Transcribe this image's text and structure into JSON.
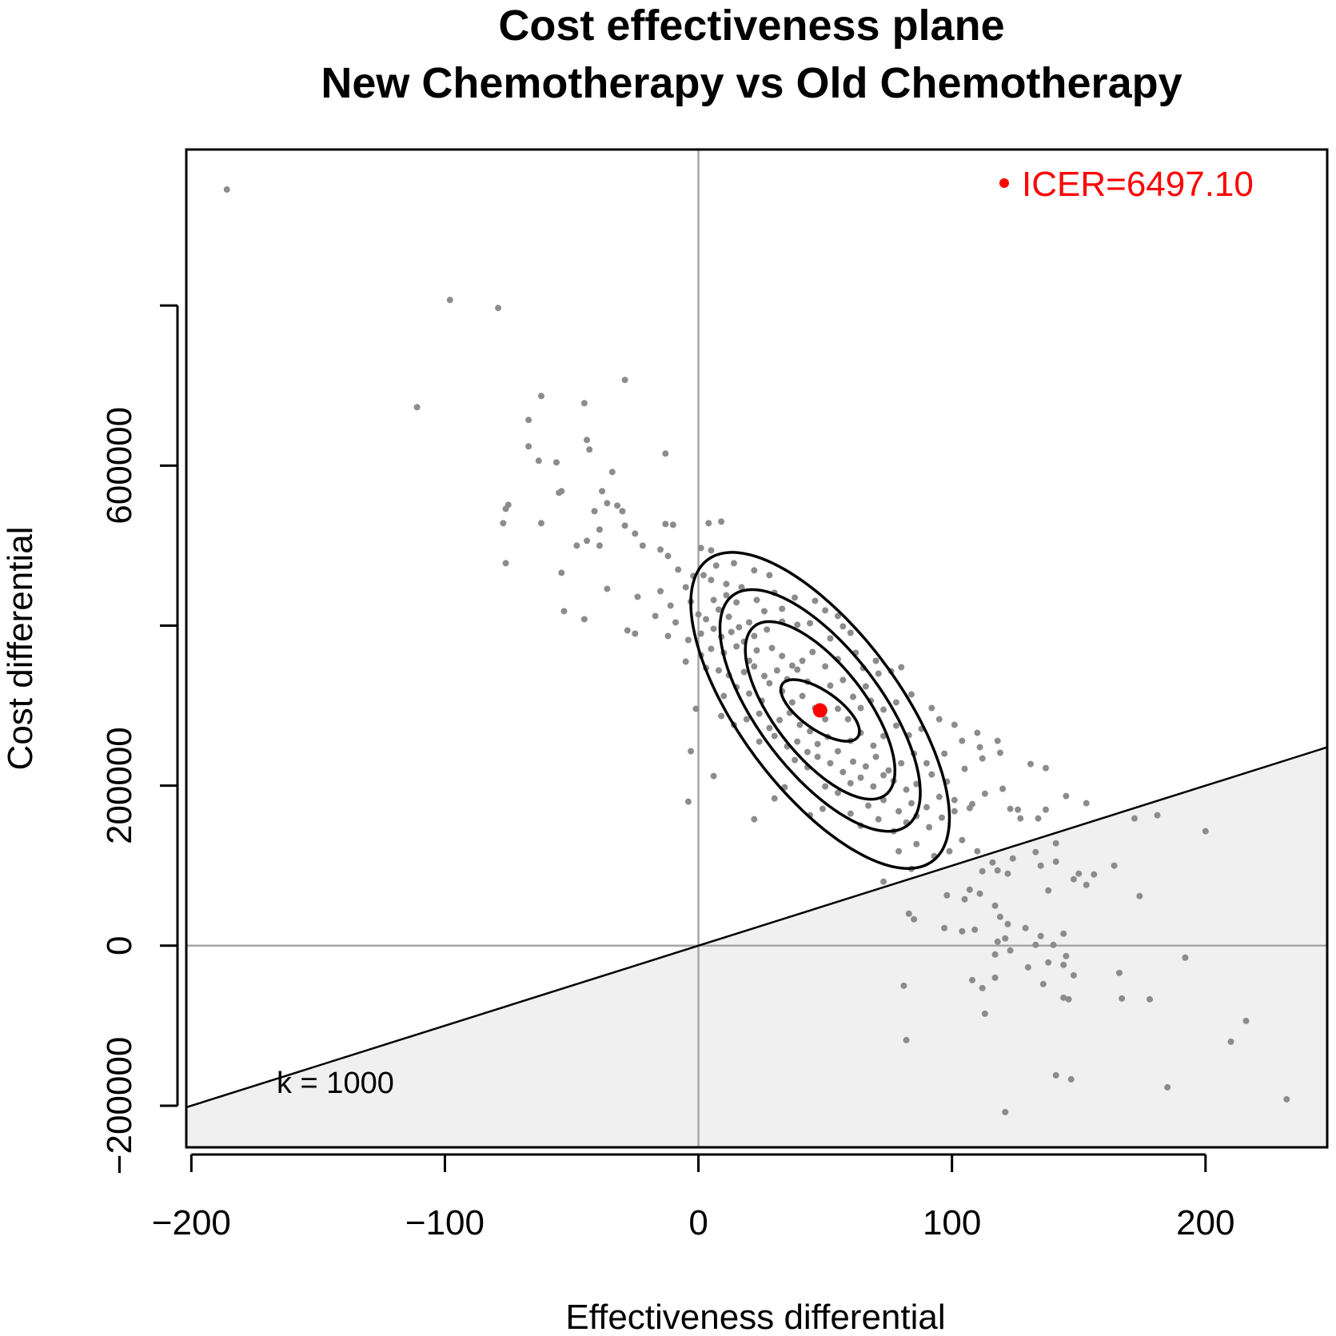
{
  "colors": {
    "points": "#8c8c8c",
    "icer": "#ff0000",
    "region_fill": "#f0f0f0",
    "axes_zero": "#a6a6a6",
    "contour": "#000000"
  },
  "chart_data": {
    "type": "scatter",
    "title": "Cost effectiveness plane",
    "subtitle": "New Chemotherapy vs Old Chemotherapy",
    "xlabel": "Effectiveness differential",
    "ylabel": "Cost differential",
    "xlim": [
      -202,
      248
    ],
    "ylim": [
      -252000,
      995000
    ],
    "x_ticks": [
      -200,
      -100,
      0,
      100,
      200
    ],
    "x_tick_labels": [
      "−200",
      "−100",
      "0",
      "100",
      "200"
    ],
    "y_ticks": [
      -200000,
      0,
      200000,
      400000,
      600000,
      800000
    ],
    "y_tick_labels": [
      "−200000",
      "0",
      "200000",
      "",
      "600000",
      ""
    ],
    "wtp_k": 1000,
    "k_label": "k = 1000",
    "icer": {
      "x": 48,
      "y": 294000,
      "value": "6497.10",
      "label": "ICER=6497.10"
    },
    "legend_position": "top-right",
    "contours": [
      {
        "level": 1,
        "cx": 48,
        "cy": 294000,
        "sx": 15.5,
        "sy": 38500,
        "rho": -0.68
      },
      {
        "level": 2,
        "cx": 48,
        "cy": 294000,
        "sx": 29.5,
        "sy": 111000,
        "rho": -0.68
      },
      {
        "level": 3,
        "cx": 48,
        "cy": 294000,
        "sx": 39.5,
        "sy": 151000,
        "rho": -0.68
      },
      {
        "level": 4,
        "cx": 48,
        "cy": 294000,
        "sx": 51.0,
        "sy": 197500,
        "rho": -0.68
      }
    ],
    "points": [
      [
        -186,
        945000
      ],
      [
        -98,
        807000
      ],
      [
        -79,
        797000
      ],
      [
        -111,
        673000
      ],
      [
        -29,
        707000
      ],
      [
        -62,
        687000
      ],
      [
        -45,
        678000
      ],
      [
        -67,
        657000
      ],
      [
        -44,
        632000
      ],
      [
        -43,
        620000
      ],
      [
        -67,
        624000
      ],
      [
        -63,
        606000
      ],
      [
        -56,
        604000
      ],
      [
        -13,
        615000
      ],
      [
        -34,
        592000
      ],
      [
        -54,
        568000
      ],
      [
        -55,
        566000
      ],
      [
        -75,
        551000
      ],
      [
        -76,
        546000
      ],
      [
        -77,
        528000
      ],
      [
        -62,
        528000
      ],
      [
        -38,
        568000
      ],
      [
        -32,
        550000
      ],
      [
        -30,
        543000
      ],
      [
        -36,
        553000
      ],
      [
        -41,
        543000
      ],
      [
        -39,
        520000
      ],
      [
        -29,
        525000
      ],
      [
        -44,
        506000
      ],
      [
        -48,
        500000
      ],
      [
        -13,
        527000
      ],
      [
        -10,
        526000
      ],
      [
        4,
        528000
      ],
      [
        9,
        530000
      ],
      [
        -25,
        515000
      ],
      [
        -39,
        500000
      ],
      [
        -22,
        500000
      ],
      [
        -15,
        495000
      ],
      [
        -12,
        487000
      ],
      [
        1,
        497000
      ],
      [
        5,
        494000
      ],
      [
        -76,
        478000
      ],
      [
        -54,
        466000
      ],
      [
        -8,
        470000
      ],
      [
        2,
        463000
      ],
      [
        7,
        475000
      ],
      [
        14,
        478000
      ],
      [
        22,
        469000
      ],
      [
        -36,
        446000
      ],
      [
        -15,
        443000
      ],
      [
        -5,
        448000
      ],
      [
        -2,
        462000
      ],
      [
        5,
        457000
      ],
      [
        11,
        452000
      ],
      [
        17,
        448000
      ],
      [
        28,
        463000
      ],
      [
        -53,
        418000
      ],
      [
        -45,
        408000
      ],
      [
        -24,
        436000
      ],
      [
        -11,
        425000
      ],
      [
        -3,
        430000
      ],
      [
        6,
        432000
      ],
      [
        11,
        438000
      ],
      [
        15,
        429000
      ],
      [
        23,
        432000
      ],
      [
        30,
        441000
      ],
      [
        -28,
        394000
      ],
      [
        -17,
        412000
      ],
      [
        -9,
        404000
      ],
      [
        0,
        414000
      ],
      [
        3,
        408000
      ],
      [
        8,
        420000
      ],
      [
        12,
        411000
      ],
      [
        16,
        398000
      ],
      [
        20,
        404000
      ],
      [
        26,
        418000
      ],
      [
        33,
        421000
      ],
      [
        38,
        435000
      ],
      [
        46,
        431000
      ],
      [
        -25,
        390000
      ],
      [
        -12,
        387000
      ],
      [
        -4,
        382000
      ],
      [
        1,
        390000
      ],
      [
        6,
        396000
      ],
      [
        9,
        386000
      ],
      [
        13,
        392000
      ],
      [
        18,
        380000
      ],
      [
        22,
        387000
      ],
      [
        27,
        395000
      ],
      [
        33,
        405000
      ],
      [
        39,
        401000
      ],
      [
        44,
        403000
      ],
      [
        50,
        419000
      ],
      [
        55,
        412000
      ],
      [
        -5,
        355000
      ],
      [
        1,
        363000
      ],
      [
        5,
        371000
      ],
      [
        10,
        366000
      ],
      [
        15,
        374000
      ],
      [
        20,
        356000
      ],
      [
        23,
        369000
      ],
      [
        29,
        372000
      ],
      [
        33,
        362000
      ],
      [
        37,
        350000
      ],
      [
        41,
        356000
      ],
      [
        45,
        367000
      ],
      [
        52,
        384000
      ],
      [
        57,
        399000
      ],
      [
        60,
        391000
      ],
      [
        3,
        347000
      ],
      [
        8,
        344000
      ],
      [
        12,
        338000
      ],
      [
        18,
        342000
      ],
      [
        22,
        349000
      ],
      [
        26,
        337000
      ],
      [
        31,
        344000
      ],
      [
        35,
        333000
      ],
      [
        39,
        345000
      ],
      [
        43,
        330000
      ],
      [
        50,
        349000
      ],
      [
        55,
        358000
      ],
      [
        62,
        366000
      ],
      [
        65,
        347000
      ],
      [
        70,
        356000
      ],
      [
        -1,
        296000
      ],
      [
        10,
        312000
      ],
      [
        15,
        323000
      ],
      [
        20,
        315000
      ],
      [
        25,
        306000
      ],
      [
        28,
        328000
      ],
      [
        33,
        318000
      ],
      [
        37,
        304000
      ],
      [
        41,
        312000
      ],
      [
        46,
        297000
      ],
      [
        52,
        325000
      ],
      [
        57,
        332000
      ],
      [
        61,
        311000
      ],
      [
        66,
        324000
      ],
      [
        71,
        340000
      ],
      [
        76,
        343000
      ],
      [
        80,
        348000
      ],
      [
        9,
        287000
      ],
      [
        14,
        276000
      ],
      [
        19,
        283000
      ],
      [
        24,
        290000
      ],
      [
        28,
        272000
      ],
      [
        32,
        282000
      ],
      [
        36,
        291000
      ],
      [
        40,
        276000
      ],
      [
        44,
        268000
      ],
      [
        50,
        283000
      ],
      [
        55,
        296000
      ],
      [
        59,
        283000
      ],
      [
        64,
        297000
      ],
      [
        68,
        306000
      ],
      [
        73,
        295000
      ],
      [
        78,
        304000
      ],
      [
        84,
        314000
      ],
      [
        92,
        297000
      ],
      [
        24,
        255000
      ],
      [
        30,
        262000
      ],
      [
        35,
        249000
      ],
      [
        39,
        255000
      ],
      [
        43,
        242000
      ],
      [
        47,
        252000
      ],
      [
        51,
        261000
      ],
      [
        55,
        243000
      ],
      [
        60,
        256000
      ],
      [
        64,
        266000
      ],
      [
        69,
        250000
      ],
      [
        73,
        262000
      ],
      [
        78,
        275000
      ],
      [
        83,
        263000
      ],
      [
        88,
        271000
      ],
      [
        95,
        283000
      ],
      [
        101,
        276000
      ],
      [
        38,
        232000
      ],
      [
        43,
        223000
      ],
      [
        47,
        236000
      ],
      [
        52,
        228000
      ],
      [
        57,
        217000
      ],
      [
        61,
        230000
      ],
      [
        66,
        224000
      ],
      [
        70,
        236000
      ],
      [
        75,
        219000
      ],
      [
        80,
        228000
      ],
      [
        85,
        240000
      ],
      [
        90,
        228000
      ],
      [
        97,
        240000
      ],
      [
        104,
        256000
      ],
      [
        111,
        248000
      ],
      [
        118,
        256000
      ],
      [
        6,
        212000
      ],
      [
        34,
        198000
      ],
      [
        50,
        199000
      ],
      [
        55,
        191000
      ],
      [
        60,
        203000
      ],
      [
        64,
        210000
      ],
      [
        69,
        199000
      ],
      [
        73,
        213000
      ],
      [
        77,
        206000
      ],
      [
        82,
        195000
      ],
      [
        86,
        202000
      ],
      [
        92,
        214000
      ],
      [
        98,
        205000
      ],
      [
        105,
        221000
      ],
      [
        112,
        234000
      ],
      [
        119,
        241000
      ],
      [
        131,
        227000
      ],
      [
        137,
        222000
      ],
      [
        110,
        266000
      ],
      [
        -3,
        243000
      ],
      [
        44,
        163000
      ],
      [
        49,
        171000
      ],
      [
        60,
        165000
      ],
      [
        67,
        175000
      ],
      [
        73,
        182000
      ],
      [
        79,
        168000
      ],
      [
        84,
        178000
      ],
      [
        90,
        173000
      ],
      [
        95,
        186000
      ],
      [
        101,
        182000
      ],
      [
        108,
        177000
      ],
      [
        113,
        190000
      ],
      [
        120,
        196000
      ],
      [
        30,
        184000
      ],
      [
        -4,
        180000
      ],
      [
        64,
        150000
      ],
      [
        71,
        158000
      ],
      [
        77,
        143000
      ],
      [
        82,
        154000
      ],
      [
        86,
        162000
      ],
      [
        91,
        148000
      ],
      [
        96,
        160000
      ],
      [
        101,
        168000
      ],
      [
        107,
        172000
      ],
      [
        123,
        171000
      ],
      [
        126,
        170000
      ],
      [
        134,
        159000
      ],
      [
        127,
        159000
      ],
      [
        137,
        170000
      ],
      [
        145,
        187000
      ],
      [
        153,
        178000
      ],
      [
        172,
        159000
      ],
      [
        181,
        163000
      ],
      [
        200,
        143000
      ],
      [
        22,
        158000
      ],
      [
        79,
        118000
      ],
      [
        86,
        127000
      ],
      [
        93,
        112000
      ],
      [
        99,
        118000
      ],
      [
        104,
        132000
      ],
      [
        110,
        118000
      ],
      [
        116,
        104000
      ],
      [
        124,
        109000
      ],
      [
        133,
        117000
      ],
      [
        141,
        128000
      ],
      [
        150,
        90000
      ],
      [
        156,
        89000
      ],
      [
        164,
        100000
      ],
      [
        84,
        96000
      ],
      [
        112,
        93000
      ],
      [
        118,
        94000
      ],
      [
        122,
        90000
      ],
      [
        135,
        100000
      ],
      [
        141,
        105000
      ],
      [
        148,
        83000
      ],
      [
        153,
        76000
      ],
      [
        73,
        80000
      ],
      [
        98,
        63000
      ],
      [
        105,
        58000
      ],
      [
        111,
        65000
      ],
      [
        107,
        70000
      ],
      [
        117,
        50000
      ],
      [
        119,
        36000
      ],
      [
        138,
        69000
      ],
      [
        174,
        62000
      ],
      [
        83,
        40000
      ],
      [
        85,
        33000
      ],
      [
        97,
        22000
      ],
      [
        109,
        20000
      ],
      [
        122,
        27000
      ],
      [
        129,
        22000
      ],
      [
        104,
        18000
      ],
      [
        135,
        12000
      ],
      [
        144,
        15000
      ],
      [
        121,
        9000
      ],
      [
        118,
        5000
      ],
      [
        133,
        1000
      ],
      [
        140,
        1000
      ],
      [
        145,
        -13000
      ],
      [
        138,
        -21000
      ],
      [
        144,
        -24000
      ],
      [
        123,
        -6000
      ],
      [
        117,
        -11000
      ],
      [
        130,
        -27000
      ],
      [
        148,
        -37000
      ],
      [
        166,
        -34000
      ],
      [
        117,
        -40000
      ],
      [
        108,
        -43000
      ],
      [
        112,
        -53000
      ],
      [
        136,
        -48000
      ],
      [
        81,
        -50000
      ],
      [
        144,
        -65000
      ],
      [
        146,
        -67000
      ],
      [
        167,
        -66000
      ],
      [
        178,
        -67000
      ],
      [
        113,
        -85000
      ],
      [
        192,
        -15000
      ],
      [
        82,
        -118000
      ],
      [
        216,
        -94000
      ],
      [
        210,
        -120000
      ],
      [
        141,
        -162000
      ],
      [
        147,
        -167000
      ],
      [
        185,
        -177000
      ],
      [
        232,
        -192000
      ],
      [
        121,
        -208000
      ]
    ]
  }
}
